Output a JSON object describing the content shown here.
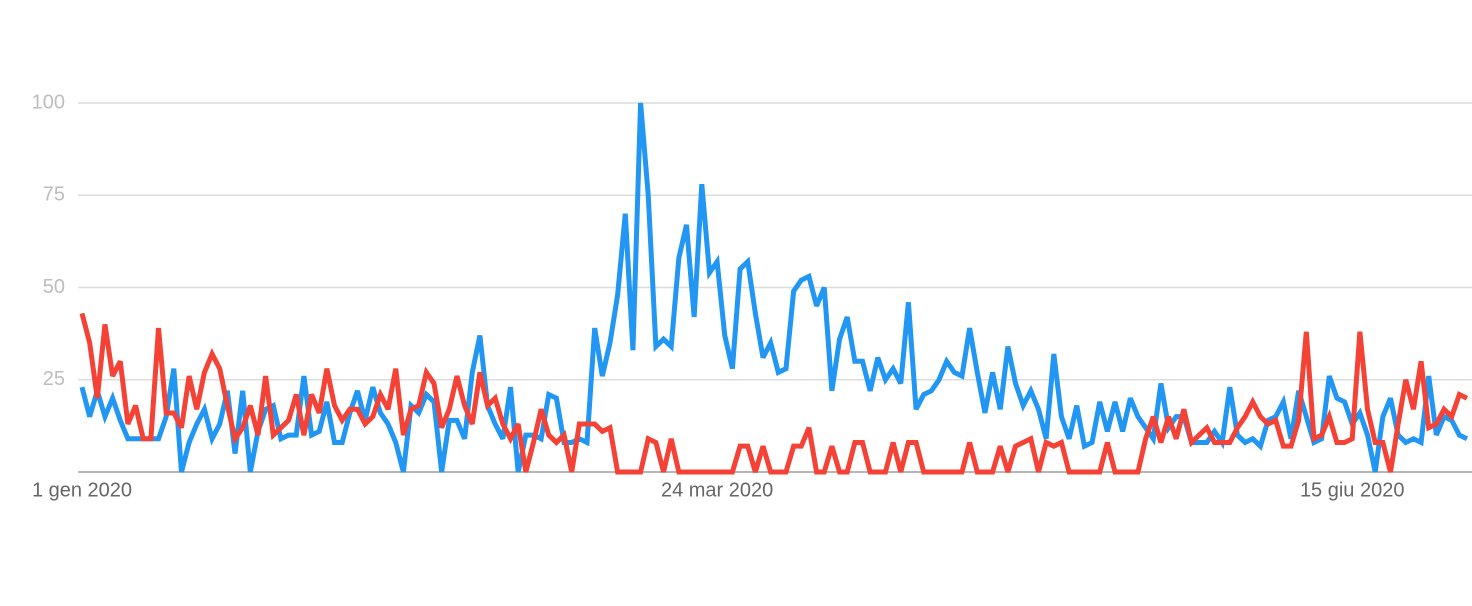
{
  "chart_data": {
    "type": "line",
    "series": [
      {
        "color": "#2196f3",
        "values": [
          23,
          15,
          22,
          15,
          20,
          14,
          9,
          9,
          9,
          9,
          9,
          15,
          28,
          0,
          8,
          13,
          17,
          9,
          13,
          22,
          5,
          22,
          0,
          11,
          17,
          18,
          9,
          10,
          10,
          26,
          10,
          11,
          19,
          8,
          8,
          16,
          22,
          14,
          23,
          16,
          13,
          8,
          0,
          18,
          16,
          21,
          19,
          0,
          14,
          14,
          9,
          27,
          37,
          18,
          13,
          9,
          23,
          0,
          10,
          10,
          9,
          21,
          20,
          8,
          8,
          9,
          8,
          39,
          26,
          35,
          48,
          70,
          33,
          100,
          75,
          34,
          36,
          34,
          58,
          67,
          42,
          78,
          54,
          57,
          37,
          28,
          55,
          57,
          43,
          31,
          35,
          27,
          28,
          49,
          52,
          53,
          45,
          50,
          22,
          36,
          42,
          30,
          30,
          22,
          31,
          25,
          28,
          24,
          46,
          17,
          21,
          22,
          25,
          30,
          27,
          26,
          39,
          27,
          16,
          27,
          17,
          34,
          24,
          18,
          22,
          17,
          9,
          32,
          15,
          9,
          18,
          7,
          8,
          19,
          11,
          19,
          11,
          20,
          15,
          12,
          9,
          24,
          12,
          15,
          15,
          8,
          8,
          8,
          11,
          8,
          23,
          10,
          8,
          9,
          7,
          14,
          15,
          19,
          9,
          22,
          15,
          8,
          9,
          26,
          20,
          19,
          13,
          16,
          10,
          0,
          15,
          20,
          10,
          8,
          9,
          8,
          26,
          10,
          15,
          14,
          10,
          9
        ]
      },
      {
        "color": "#f44336",
        "values": [
          43,
          35,
          20,
          40,
          26,
          30,
          13,
          18,
          9,
          9,
          39,
          16,
          16,
          12,
          26,
          17,
          27,
          32,
          28,
          18,
          9,
          12,
          18,
          10,
          26,
          10,
          12,
          14,
          21,
          10,
          21,
          16,
          28,
          18,
          14,
          17,
          17,
          13,
          15,
          21,
          17,
          28,
          10,
          17,
          18,
          27,
          24,
          12,
          17,
          26,
          18,
          13,
          27,
          18,
          20,
          13,
          9,
          13,
          0,
          8,
          17,
          10,
          8,
          10,
          0,
          13,
          13,
          13,
          11,
          12,
          0,
          0,
          0,
          0,
          9,
          8,
          0,
          9,
          0,
          0,
          0,
          0,
          0,
          0,
          0,
          0,
          7,
          7,
          0,
          7,
          0,
          0,
          0,
          7,
          7,
          12,
          0,
          0,
          7,
          0,
          0,
          8,
          8,
          0,
          0,
          0,
          8,
          0,
          8,
          8,
          0,
          0,
          0,
          0,
          0,
          0,
          8,
          0,
          0,
          0,
          7,
          0,
          7,
          8,
          9,
          0,
          8,
          7,
          8,
          0,
          0,
          0,
          0,
          0,
          8,
          0,
          0,
          0,
          0,
          9,
          15,
          8,
          15,
          9,
          17,
          8,
          10,
          12,
          8,
          8,
          8,
          12,
          15,
          19,
          15,
          13,
          14,
          7,
          7,
          14,
          38,
          9,
          10,
          15,
          8,
          8,
          9,
          38,
          17,
          8,
          8,
          0,
          13,
          25,
          17,
          30,
          12,
          13,
          17,
          15,
          21,
          20
        ]
      }
    ],
    "xlim": [
      0,
      181
    ],
    "xticks": [
      {
        "value": 0,
        "label": "1 gen 2020"
      },
      {
        "value": 83,
        "label": "24 mar 2020"
      },
      {
        "value": 166,
        "label": "15 giu 2020"
      }
    ],
    "ylim": [
      0,
      100
    ],
    "yticks": [
      25,
      50,
      75,
      100
    ],
    "grid": true
  }
}
